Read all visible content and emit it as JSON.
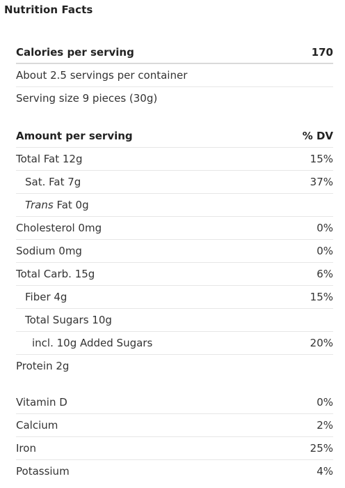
{
  "title": "Nutrition Facts",
  "calories": {
    "label": "Calories per serving",
    "value": "170"
  },
  "servings": {
    "per_container": "About 2.5 servings per container",
    "serving_size": "Serving size 9 pieces (30g)"
  },
  "amounts": {
    "header_label": "Amount per serving",
    "header_dv": "% DV",
    "rows": [
      {
        "label": "Total Fat 12g",
        "dv": "15%"
      },
      {
        "label": "Sat. Fat 7g",
        "dv": "37%"
      },
      {
        "label_prefix": "Trans",
        "label": " Fat 0g",
        "dv": ""
      },
      {
        "label": "Cholesterol 0mg",
        "dv": "0%"
      },
      {
        "label": "Sodium 0mg",
        "dv": "0%"
      },
      {
        "label": "Total Carb. 15g",
        "dv": "6%"
      },
      {
        "label": "Fiber 4g",
        "dv": "15%"
      },
      {
        "label": "Total Sugars 10g",
        "dv": ""
      },
      {
        "label": "incl. 10g Added Sugars",
        "dv": "20%"
      },
      {
        "label": "Protein 2g",
        "dv": ""
      }
    ]
  },
  "vitamins": [
    {
      "label": "Vitamin D",
      "dv": "0%"
    },
    {
      "label": "Calcium",
      "dv": "2%"
    },
    {
      "label": "Iron",
      "dv": "25%"
    },
    {
      "label": "Potassium",
      "dv": "4%"
    }
  ]
}
